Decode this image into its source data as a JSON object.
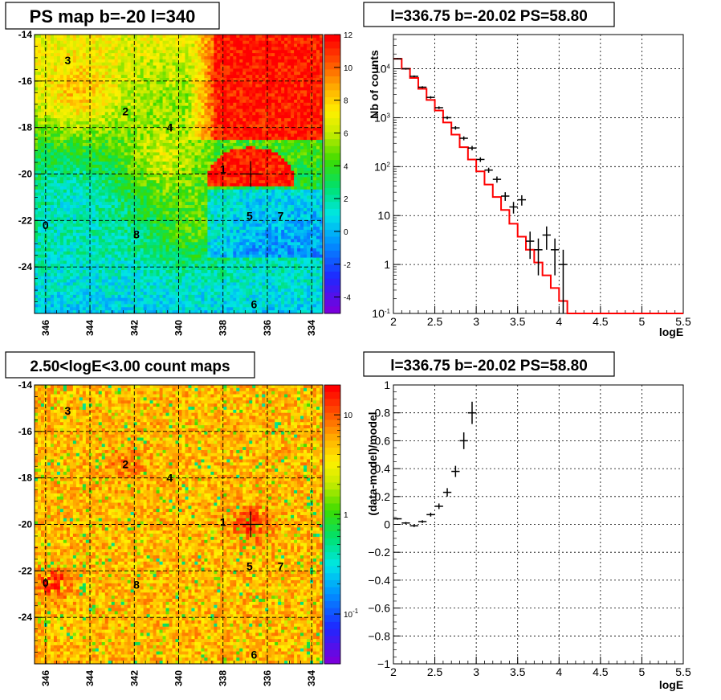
{
  "chart_data": [
    {
      "type": "heatmap",
      "title": "PS map b=-20 l=340",
      "xlabel": "",
      "ylabel": "",
      "x_ticks": [
        "346",
        "344",
        "342",
        "340",
        "338",
        "336",
        "334"
      ],
      "xlim": [
        346.5,
        333.5
      ],
      "y_ticks": [
        "-14",
        "-16",
        "-18",
        "-20",
        "-22",
        "-24"
      ],
      "ylim": [
        -26,
        -14
      ],
      "colorbar_ticks": [
        "12",
        "10",
        "8",
        "6",
        "4",
        "2",
        "0",
        "-2",
        "-4"
      ],
      "colorbar_range": [
        -5,
        12
      ],
      "grid": true,
      "marker": {
        "l": 336.75,
        "b": -20.0
      },
      "sources": [
        {
          "label": "0",
          "l": 346.0,
          "b": -22.2
        },
        {
          "label": "1",
          "l": 338.0,
          "b": -19.8
        },
        {
          "label": "2",
          "l": 342.4,
          "b": -17.3
        },
        {
          "label": "3",
          "l": 345.0,
          "b": -15.1
        },
        {
          "label": "4",
          "l": 340.4,
          "b": -18.0
        },
        {
          "label": "5",
          "l": 336.8,
          "b": -21.8
        },
        {
          "label": "6",
          "l": 336.6,
          "b": -25.6
        },
        {
          "label": "7",
          "l": 335.4,
          "b": -21.8
        },
        {
          "label": "8",
          "l": 341.9,
          "b": -22.6
        }
      ]
    },
    {
      "type": "line",
      "title": "l=336.75 b=-20.02 PS=58.80",
      "xlabel": "logE",
      "ylabel": "Nb of counts",
      "xlim": [
        2,
        5.5
      ],
      "ylim": [
        0.1,
        50000
      ],
      "log_y": true,
      "grid": true,
      "x_ticks": [
        "2",
        "2.5",
        "3",
        "3.5",
        "4",
        "4.5",
        "5",
        "5.5"
      ],
      "y_ticks": [
        {
          "text": "10",
          "sup": "-1",
          "v": 0.1
        },
        {
          "text": "1",
          "sup": "",
          "v": 1
        },
        {
          "text": "10",
          "sup": "",
          "v": 10
        },
        {
          "text": "10",
          "sup": "2",
          "v": 100
        },
        {
          "text": "10",
          "sup": "3",
          "v": 1000
        },
        {
          "text": "10",
          "sup": "4",
          "v": 10000
        }
      ],
      "series": [
        {
          "color": "#ff0000",
          "edges": [
            2,
            2.1,
            2.2,
            2.3,
            2.4,
            2.5,
            2.6,
            2.7,
            2.8,
            2.9,
            3.0,
            3.1,
            3.2,
            3.3,
            3.4,
            3.5,
            3.6,
            3.7,
            3.8,
            3.9,
            4.0,
            4.1,
            4.2,
            4.3,
            4.4,
            4.5,
            4.6,
            4.7,
            4.8,
            4.9,
            5.0,
            5.1,
            5.2,
            5.3,
            5.4,
            5.5
          ],
          "values": [
            16000,
            10000,
            6500,
            3900,
            2300,
            1400,
            800,
            450,
            250,
            140,
            80,
            43,
            24,
            13,
            6.8,
            3.7,
            2.0,
            1.1,
            0.6,
            0.33,
            0.18,
            0.1,
            0.1,
            0.1,
            0.1,
            0.1,
            0.1,
            0.1,
            0.1,
            0.1,
            0.1,
            0.1,
            0.1,
            0.1,
            0.1
          ]
        },
        {
          "color": "#000000",
          "points": [
            {
              "x": 2.05,
              "y": 16000,
              "lo": 15500,
              "hi": 16500
            },
            {
              "x": 2.15,
              "y": 10000,
              "lo": 9600,
              "hi": 10400
            },
            {
              "x": 2.25,
              "y": 7000,
              "lo": 6700,
              "hi": 7300
            },
            {
              "x": 2.35,
              "y": 4200,
              "lo": 4000,
              "hi": 4400
            },
            {
              "x": 2.45,
              "y": 2600,
              "lo": 2450,
              "hi": 2750
            },
            {
              "x": 2.55,
              "y": 1600,
              "lo": 1500,
              "hi": 1700
            },
            {
              "x": 2.65,
              "y": 1000,
              "lo": 930,
              "hi": 1070
            },
            {
              "x": 2.75,
              "y": 620,
              "lo": 570,
              "hi": 670
            },
            {
              "x": 2.85,
              "y": 380,
              "lo": 345,
              "hi": 415
            },
            {
              "x": 2.95,
              "y": 240,
              "lo": 215,
              "hi": 265
            },
            {
              "x": 3.05,
              "y": 140,
              "lo": 125,
              "hi": 155
            },
            {
              "x": 3.15,
              "y": 85,
              "lo": 75,
              "hi": 95
            },
            {
              "x": 3.25,
              "y": 55,
              "lo": 47,
              "hi": 63
            },
            {
              "x": 3.35,
              "y": 25,
              "lo": 20,
              "hi": 30
            },
            {
              "x": 3.45,
              "y": 15,
              "lo": 11,
              "hi": 19
            },
            {
              "x": 3.55,
              "y": 21,
              "lo": 16,
              "hi": 26
            },
            {
              "x": 3.65,
              "y": 3,
              "lo": 1.3,
              "hi": 4.7
            },
            {
              "x": 3.75,
              "y": 2,
              "lo": 0.6,
              "hi": 3.4
            },
            {
              "x": 3.85,
              "y": 4,
              "lo": 2,
              "hi": 6
            },
            {
              "x": 3.95,
              "y": 2,
              "lo": 0.6,
              "hi": 3.4
            },
            {
              "x": 4.05,
              "y": 1,
              "lo": 0.1,
              "hi": 2
            }
          ]
        }
      ]
    },
    {
      "type": "heatmap",
      "title": "2.50<logE<3.00 count maps",
      "xlabel": "",
      "ylabel": "",
      "x_ticks": [
        "346",
        "344",
        "342",
        "340",
        "338",
        "336",
        "334"
      ],
      "xlim": [
        346.5,
        333.5
      ],
      "y_ticks": [
        "-14",
        "-16",
        "-18",
        "-20",
        "-22",
        "-24"
      ],
      "ylim": [
        -26,
        -14
      ],
      "colorbar_ticks": [
        {
          "text": "10",
          "sup": ""
        },
        {
          "text": "1",
          "sup": ""
        },
        {
          "text": "10",
          "sup": "-1"
        }
      ],
      "log_color": true,
      "grid": true,
      "marker": {
        "l": 336.75,
        "b": -20.0
      },
      "sources": [
        {
          "label": "0",
          "l": 346.0,
          "b": -22.5
        },
        {
          "label": "1",
          "l": 338.0,
          "b": -19.9
        },
        {
          "label": "2",
          "l": 342.4,
          "b": -17.4
        },
        {
          "label": "3",
          "l": 345.0,
          "b": -15.1
        },
        {
          "label": "4",
          "l": 340.4,
          "b": -18.0
        },
        {
          "label": "5",
          "l": 336.8,
          "b": -21.8
        },
        {
          "label": "6",
          "l": 336.6,
          "b": -25.6
        },
        {
          "label": "7",
          "l": 335.4,
          "b": -21.8
        },
        {
          "label": "8",
          "l": 341.9,
          "b": -22.6
        }
      ]
    },
    {
      "type": "scatter",
      "title": "l=336.75 b=-20.02 PS=58.80",
      "xlabel": "logE",
      "ylabel": "(data-model)/model",
      "xlim": [
        2,
        5.5
      ],
      "ylim": [
        -1,
        1
      ],
      "grid": true,
      "x_ticks": [
        "2",
        "2.5",
        "3",
        "3.5",
        "4",
        "4.5",
        "5",
        "5.5"
      ],
      "y_ticks": [
        "1",
        "0.8",
        "0.6",
        "0.4",
        "0.2",
        "0",
        "−0.2",
        "−0.4",
        "−0.6",
        "−0.8",
        "−1"
      ],
      "series": [
        {
          "color": "#000000",
          "points": [
            {
              "x": 2.05,
              "y": 0.04,
              "e": 0.006
            },
            {
              "x": 2.15,
              "y": 0.01,
              "e": 0.007
            },
            {
              "x": 2.25,
              "y": -0.01,
              "e": 0.009
            },
            {
              "x": 2.35,
              "y": 0.02,
              "e": 0.01
            },
            {
              "x": 2.45,
              "y": 0.07,
              "e": 0.014
            },
            {
              "x": 2.55,
              "y": 0.13,
              "e": 0.02
            },
            {
              "x": 2.65,
              "y": 0.23,
              "e": 0.03
            },
            {
              "x": 2.75,
              "y": 0.38,
              "e": 0.04
            },
            {
              "x": 2.85,
              "y": 0.6,
              "e": 0.06
            },
            {
              "x": 2.95,
              "y": 0.8,
              "e": 0.08
            }
          ]
        }
      ]
    }
  ]
}
